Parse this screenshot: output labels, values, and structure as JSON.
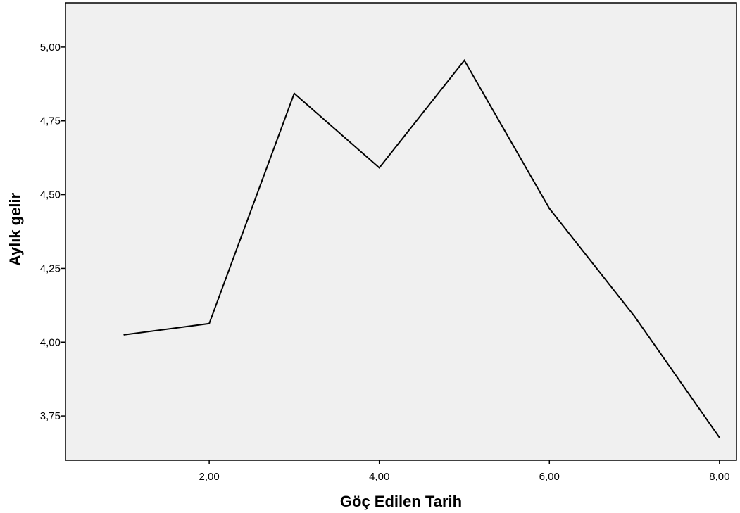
{
  "chart_data": {
    "type": "line",
    "title": "",
    "xlabel": "Göç Edilen Tarih",
    "ylabel": "Aylık gelir",
    "x": [
      1,
      2,
      3,
      4,
      5,
      6,
      7,
      8
    ],
    "series": [
      {
        "values": [
          4.025,
          4.063,
          4.843,
          4.591,
          4.955,
          4.453,
          4.088,
          3.677
        ]
      }
    ],
    "xlim": [
      0.31,
      8.2
    ],
    "ylim": [
      3.6,
      5.15
    ],
    "xticks": [
      2,
      4,
      6,
      8
    ],
    "xtick_labels": [
      "2,00",
      "4,00",
      "6,00",
      "8,00"
    ],
    "yticks": [
      3.75,
      4.0,
      4.25,
      4.5,
      4.75,
      5.0
    ],
    "ytick_labels": [
      "3,75",
      "4,00",
      "4,25",
      "4,50",
      "4,75",
      "5,00"
    ],
    "grid": false,
    "legend": "none",
    "colors": {
      "line": "#000000",
      "plot_background": "#f0f0f0",
      "page_background": "#ffffff"
    }
  }
}
